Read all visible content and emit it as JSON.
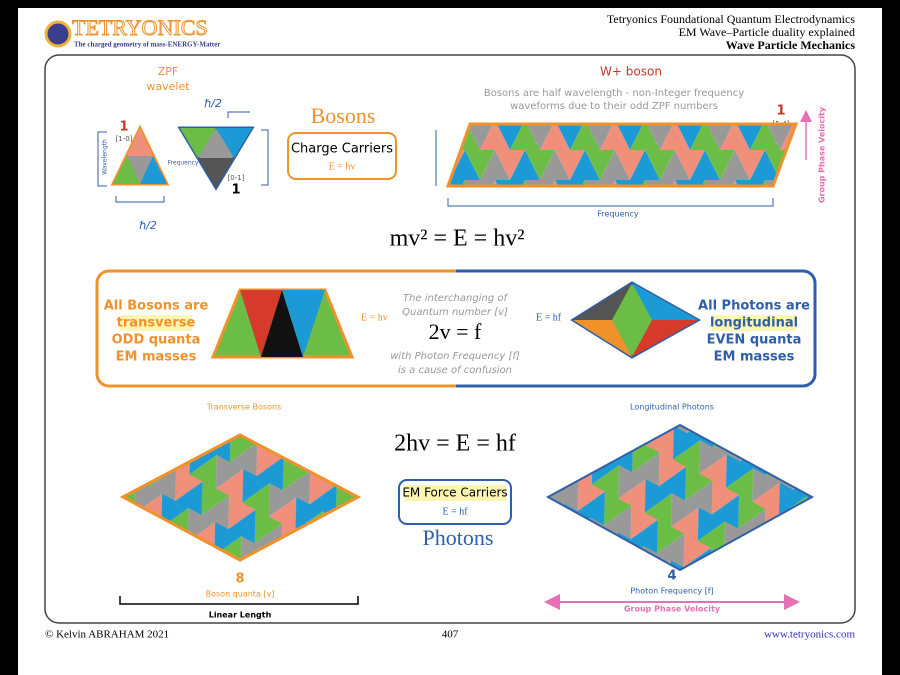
{
  "header": {
    "logo": "TETRYONICS",
    "tagline": "The charged geometry of mass-ENERGY-Matter",
    "lines": [
      "Tetryonics Foundational Quantum Electrodynamics",
      "EM Wave–Particle duality explained",
      "Wave Particle Mechanics"
    ]
  },
  "zpf": {
    "title": [
      "ZPF",
      "wavelet"
    ],
    "hbar_top": "ℏ/2",
    "hbar_bottom": "ℏ/2",
    "left_number": "1",
    "left_quantum": "[1-0]",
    "right_number": "1",
    "right_quantum": "[0-1]",
    "frequency": "Frequency",
    "wavelength": "Wavelength"
  },
  "bosons": {
    "title": "Bosons",
    "box_title": "Charge Carriers",
    "box_equation": "E = hv"
  },
  "w_boson": {
    "title": "W+ boson",
    "description": [
      "Bosons are half wavelength - non-Integer frequency",
      "waveforms due to their odd ZPF numbers"
    ],
    "number": "1",
    "quantum": "[5-4]",
    "velocity": "Group Phase Velocity",
    "frequency": "Frequency"
  },
  "equation_top": "mv² = E = hv²",
  "comparison": {
    "left": [
      "All Bosons are",
      "transverse",
      "ODD quanta",
      "EM masses"
    ],
    "left_equation": "E = hv",
    "middle_top": [
      "The interchanging of",
      "Quantum number [v]"
    ],
    "middle_equation": "2v = f",
    "middle_bottom": [
      "with Photon Frequency [f]",
      "is a cause of confusion"
    ],
    "right_equation": "E = hf",
    "right": [
      "All Photons are",
      "longitudinal",
      "EVEN quanta",
      "EM masses"
    ]
  },
  "bottom": {
    "left_title": "Transverse Bosons",
    "right_title": "Longitudinal Photons",
    "equation": "2hv = E = hf",
    "box_title": "EM Force Carriers",
    "box_equation": "E = hf",
    "photons": "Photons",
    "left_count": "8",
    "left_label": "Boson quanta [v]",
    "linear_length": "Linear Length",
    "right_count": "4",
    "right_label": "Photon Frequency [f]",
    "velocity": "Group Phase Velocity"
  },
  "footer": {
    "copyright": "© Kelvin ABRAHAM 2021",
    "page": "407",
    "url": "www.tetryonics.com"
  }
}
